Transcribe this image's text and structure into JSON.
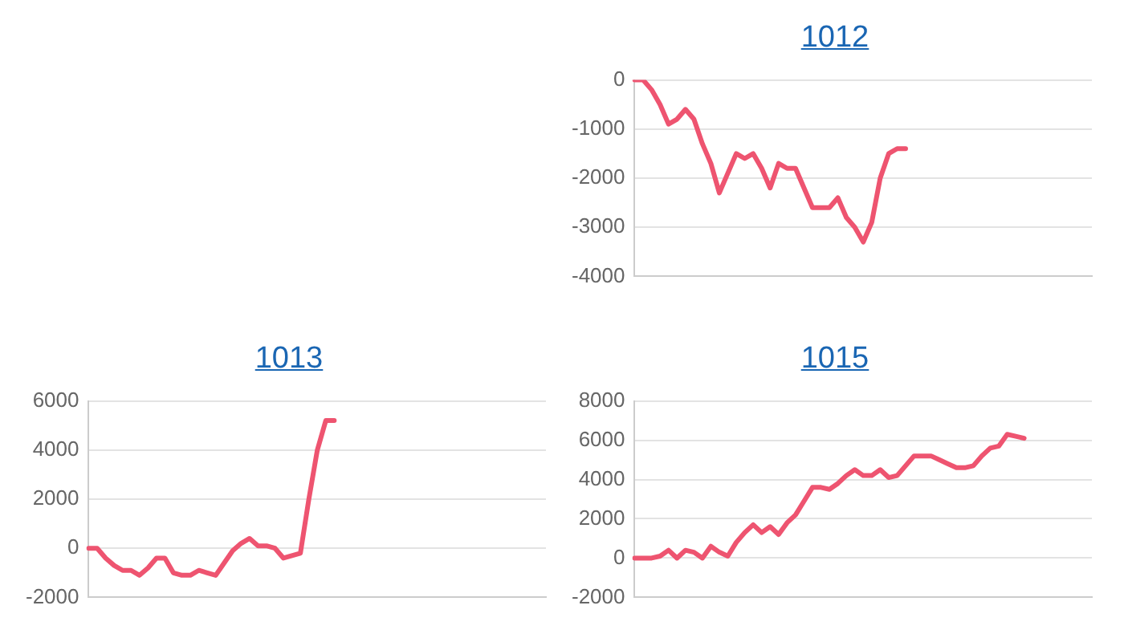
{
  "chart_data": [
    {
      "type": "line",
      "title": "1012",
      "categories": [
        null,
        null,
        null,
        null,
        null,
        null,
        null,
        null,
        null,
        null,
        null,
        null,
        null,
        null,
        null,
        null,
        null,
        null,
        null,
        null,
        null,
        null,
        null,
        null,
        null,
        null,
        null,
        null,
        null,
        null,
        null,
        null,
        null,
        null,
        null,
        null,
        null,
        null,
        null,
        null,
        null,
        null,
        null,
        null,
        null,
        null,
        null,
        null,
        null,
        null,
        null,
        null,
        null,
        null,
        null
      ],
      "series": [
        {
          "color": "#ee5470",
          "values": [
            0,
            0,
            -200,
            -500,
            -900,
            -800,
            -600,
            -800,
            -1300,
            -1700,
            -2300,
            -1900,
            -1500,
            -1600,
            -1500,
            -1800,
            -2200,
            -1700,
            -1800,
            -1800,
            -2200,
            -2600,
            -2600,
            -2600,
            -2400,
            -2800,
            -3000,
            -3300,
            -2900,
            -2000,
            -1500,
            -1400,
            -1400,
            null,
            null,
            null,
            null,
            null,
            null,
            null,
            null,
            null,
            null,
            null,
            null,
            null,
            null,
            null,
            null,
            null,
            null,
            null,
            null,
            null,
            null
          ]
        }
      ],
      "ylim": [
        -4000,
        0
      ],
      "yticks": [
        -4000,
        -3000,
        -2000,
        -1000,
        0
      ],
      "grid": "y",
      "tick_labels": "y",
      "marker": "none"
    },
    {
      "type": "line",
      "title": "1013",
      "categories": [
        null,
        null,
        null,
        null,
        null,
        null,
        null,
        null,
        null,
        null,
        null,
        null,
        null,
        null,
        null,
        null,
        null,
        null,
        null,
        null,
        null,
        null,
        null,
        null,
        null,
        null,
        null,
        null,
        null,
        null,
        null,
        null,
        null,
        null,
        null,
        null,
        null,
        null,
        null,
        null,
        null,
        null,
        null,
        null,
        null,
        null,
        null,
        null,
        null,
        null,
        null,
        null,
        null,
        null,
        null
      ],
      "series": [
        {
          "color": "#ee5470",
          "values": [
            0,
            0,
            -400,
            -700,
            -900,
            -900,
            -1100,
            -800,
            -400,
            -400,
            -1000,
            -1100,
            -1100,
            -900,
            -1000,
            -1100,
            -600,
            -100,
            200,
            400,
            100,
            100,
            0,
            -400,
            -300,
            -200,
            2000,
            4000,
            5200,
            5200,
            null,
            null,
            null,
            null,
            null,
            null,
            null,
            null,
            null,
            null,
            null,
            null,
            null,
            null,
            null,
            null,
            null,
            null,
            null,
            null,
            null,
            null,
            null,
            null,
            null
          ]
        }
      ],
      "ylim": [
        -2000,
        6000
      ],
      "yticks": [
        -2000,
        0,
        2000,
        4000,
        6000
      ],
      "grid": "y",
      "tick_labels": "y",
      "marker": "none"
    },
    {
      "type": "line",
      "title": "1015",
      "categories": [
        null,
        null,
        null,
        null,
        null,
        null,
        null,
        null,
        null,
        null,
        null,
        null,
        null,
        null,
        null,
        null,
        null,
        null,
        null,
        null,
        null,
        null,
        null,
        null,
        null,
        null,
        null,
        null,
        null,
        null,
        null,
        null,
        null,
        null,
        null,
        null,
        null,
        null,
        null,
        null,
        null,
        null,
        null,
        null,
        null,
        null,
        null,
        null,
        null,
        null,
        null,
        null,
        null,
        null,
        null
      ],
      "series": [
        {
          "color": "#ee5470",
          "values": [
            0,
            0,
            0,
            100,
            400,
            0,
            400,
            300,
            0,
            600,
            300,
            100,
            800,
            1300,
            1700,
            1300,
            1600,
            1200,
            1800,
            2200,
            2900,
            3600,
            3600,
            3500,
            3800,
            4200,
            4500,
            4200,
            4200,
            4500,
            4100,
            4200,
            4700,
            5200,
            5200,
            5200,
            5000,
            4800,
            4600,
            4600,
            4700,
            5200,
            5600,
            5700,
            6300,
            6200,
            6100,
            null,
            null,
            null,
            null,
            null,
            null,
            null,
            null
          ]
        }
      ],
      "ylim": [
        -2000,
        8000
      ],
      "yticks": [
        -2000,
        0,
        2000,
        4000,
        6000,
        8000
      ],
      "grid": "y",
      "tick_labels": "y",
      "marker": "none"
    }
  ]
}
